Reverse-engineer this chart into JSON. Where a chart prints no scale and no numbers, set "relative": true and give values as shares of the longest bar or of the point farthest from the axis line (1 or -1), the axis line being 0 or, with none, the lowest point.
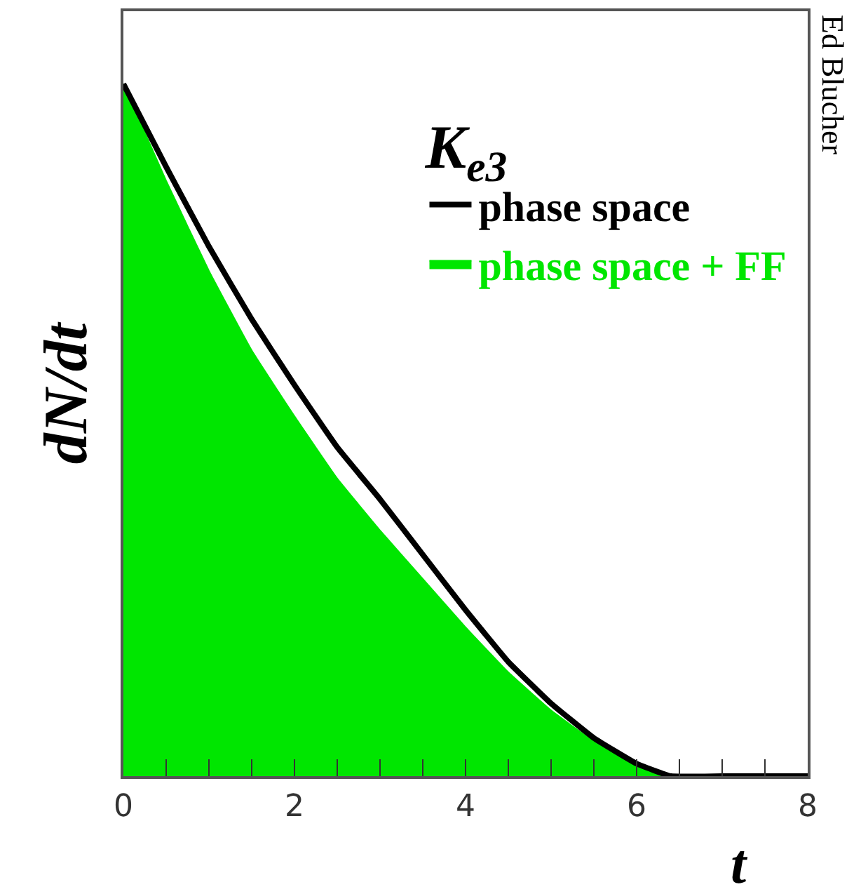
{
  "chart_data": {
    "type": "line",
    "relative": true,
    "xlabel": "t",
    "ylabel": "dN/dt",
    "legend_title": "K$_{e3}$",
    "legend": "top right",
    "xlim": [
      0,
      8
    ],
    "xticks": [
      0,
      {
        "value": 0.5,
        "label": null
      },
      {
        "value": 1,
        "label": null
      },
      {
        "value": 1.5,
        "label": null
      },
      2,
      {
        "value": 2.5,
        "label": null
      },
      {
        "value": 3,
        "label": null
      },
      {
        "value": 3.5,
        "label": null
      },
      4,
      {
        "value": 4.5,
        "label": null
      },
      {
        "value": 5,
        "label": null
      },
      {
        "value": 5.5,
        "label": null
      },
      6,
      {
        "value": 6.5,
        "label": null
      },
      {
        "value": 7,
        "label": null
      },
      {
        "value": 7.5,
        "label": null
      },
      8
    ],
    "series": [
      {
        "name": "phase space + FF",
        "type": "area",
        "color": "#00e600",
        "x": [
          0,
          0.5,
          1,
          1.5,
          2,
          2.5,
          3,
          3.5,
          4,
          4.5,
          5,
          5.5,
          6,
          6.3
        ],
        "values": [
          1,
          0.86,
          0.73,
          0.615,
          0.52,
          0.43,
          0.355,
          0.285,
          0.215,
          0.15,
          0.095,
          0.05,
          0.015,
          0
        ]
      },
      {
        "name": "phase space",
        "color": "#000000",
        "x": [
          0,
          0.5,
          1,
          1.5,
          2,
          2.5,
          3,
          3.5,
          4,
          4.5,
          5,
          5.5,
          6,
          6.4,
          7,
          8
        ],
        "values": [
          1,
          0.88,
          0.765,
          0.66,
          0.565,
          0.475,
          0.4,
          0.32,
          0.24,
          0.165,
          0.105,
          0.055,
          0.018,
          0,
          0,
          0
        ]
      }
    ],
    "annotations": [
      "Ed Blucher"
    ]
  }
}
